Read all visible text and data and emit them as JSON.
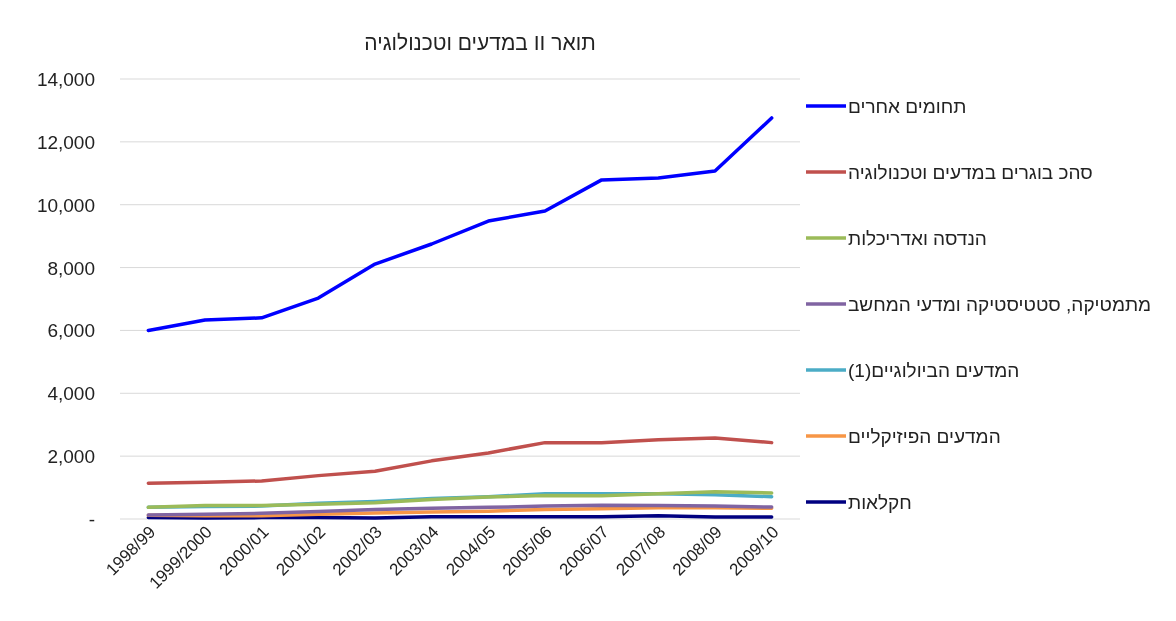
{
  "chart_data": {
    "type": "line",
    "title": "תואר II במדעים וטכנולוגיה",
    "categories": [
      "1998/99",
      "1999/2000",
      "2000/01",
      "2001/02",
      "2002/03",
      "2003/04",
      "2004/05",
      "2005/06",
      "2006/07",
      "2007/08",
      "2008/09",
      "2009/10"
    ],
    "series": [
      {
        "name": "תחומים אחרים",
        "color": "#0000ff",
        "values": [
          6000,
          6330,
          6400,
          7030,
          8110,
          8750,
          9480,
          9800,
          10790,
          10850,
          11070,
          12760
        ]
      },
      {
        "name": "סהכ בוגרים במדעים וטכנולוגיה",
        "color": "#c0504d",
        "values": [
          1140,
          1170,
          1210,
          1380,
          1520,
          1850,
          2100,
          2430,
          2430,
          2520,
          2580,
          2430
        ]
      },
      {
        "name": "הנדסה ואדריכלות",
        "color": "#9bbb59",
        "values": [
          370,
          430,
          430,
          470,
          520,
          620,
          700,
          750,
          740,
          800,
          870,
          830
        ]
      },
      {
        "name": "מתמטיקה, סטטיסטיקה ומדעי המחשב",
        "color": "#8064a2",
        "values": [
          130,
          150,
          180,
          240,
          300,
          340,
          370,
          410,
          440,
          430,
          410,
          380
        ]
      },
      {
        "name": "המדעים הביולוגיים(1)",
        "color": "#4bacc6",
        "values": [
          370,
          400,
          410,
          500,
          560,
          650,
          710,
          800,
          800,
          800,
          770,
          710
        ]
      },
      {
        "name": "המדעים הפיזיקליים",
        "color": "#f79646",
        "values": [
          120,
          100,
          100,
          150,
          190,
          220,
          250,
          300,
          330,
          360,
          360,
          340
        ]
      },
      {
        "name": "חקלאות",
        "color": "#000080",
        "values": [
          45,
          30,
          45,
          45,
          30,
          75,
          75,
          75,
          75,
          100,
          60,
          60
        ]
      }
    ],
    "ylim": [
      0,
      14000
    ],
    "yticks": [
      {
        "value": 0,
        "label": "-"
      },
      {
        "value": 2000,
        "label": "2,000"
      },
      {
        "value": 4000,
        "label": "4,000"
      },
      {
        "value": 6000,
        "label": "6,000"
      },
      {
        "value": 8000,
        "label": "8,000"
      },
      {
        "value": 10000,
        "label": "10,000"
      },
      {
        "value": 12000,
        "label": "12,000"
      },
      {
        "value": 14000,
        "label": "14,000"
      }
    ],
    "grid": "y",
    "legend": "right",
    "line_style": "solid"
  }
}
